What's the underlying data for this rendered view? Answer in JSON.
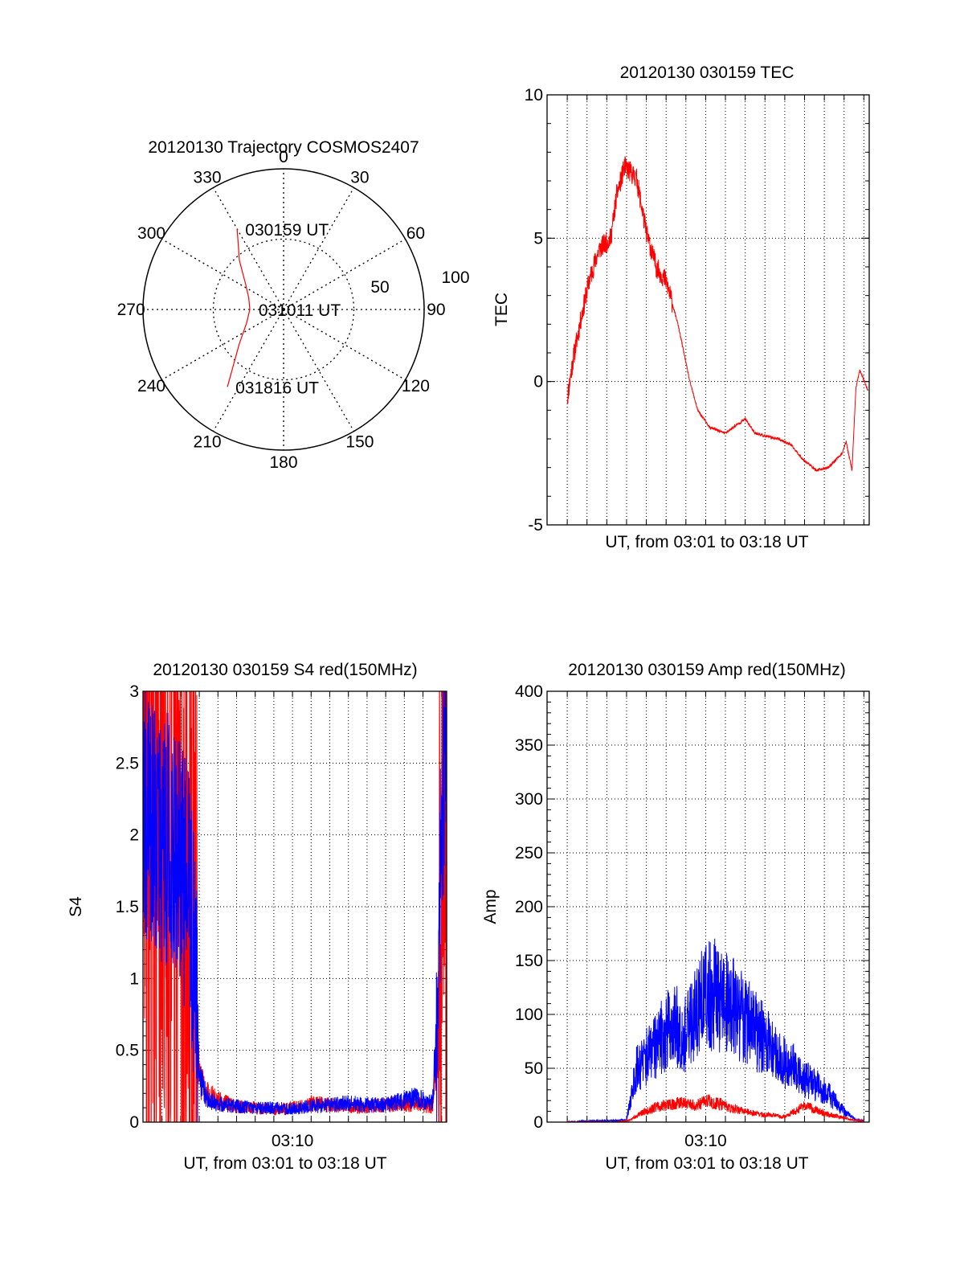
{
  "chart_data": [
    {
      "id": "trajectory",
      "type": "polar",
      "title": "20120130 Trajectory COSMOS2407",
      "azimuth_labels": [
        "0",
        "30",
        "60",
        "90",
        "120",
        "150",
        "180",
        "210",
        "240",
        "270",
        "300",
        "330"
      ],
      "radius_labels": [
        "50",
        "100"
      ],
      "series": [
        {
          "color": "#ff0000",
          "points": [
            [
              330,
              66
            ],
            [
              318,
              47
            ],
            [
              303,
              32
            ],
            [
              288,
              26
            ],
            [
              270,
              24
            ],
            [
              250,
              28
            ],
            [
              232,
              40
            ],
            [
              216,
              68
            ]
          ]
        }
      ],
      "annotations": [
        {
          "text": "030159 UT",
          "az": 330,
          "r": 66
        },
        {
          "text": "031011 UT",
          "az": 270,
          "r": 24
        },
        {
          "text": "031816 UT",
          "az": 216,
          "r": 68
        }
      ]
    },
    {
      "id": "tec",
      "type": "line",
      "title": "20120130 030159 TEC",
      "xlabel": "UT, from 03:01 to 03:18 UT",
      "ylabel": "TEC",
      "xlim": [
        1.98,
        18.27
      ],
      "ylim": [
        -5,
        10
      ],
      "yticks": [
        -5,
        0,
        5,
        10
      ],
      "xtick_labels": [],
      "series": [
        {
          "color": "#ff0000",
          "noise": "low",
          "x": [
            3.0,
            3.3,
            3.7,
            4.1,
            4.6,
            5.2,
            5.5,
            5.9,
            6.5,
            7.0,
            7.5,
            8.0,
            8.6,
            9.2,
            9.6,
            10.2,
            11.0,
            12.0,
            12.5,
            13.0,
            13.7,
            14.3,
            14.9,
            15.6,
            16.2,
            16.9,
            17.1,
            17.4,
            17.6,
            17.8,
            18.2
          ],
          "y": [
            -0.6,
            0.8,
            2.2,
            3.5,
            4.6,
            5.0,
            6.5,
            7.5,
            7.1,
            5.2,
            4.0,
            3.5,
            2.0,
            0.0,
            -1.0,
            -1.6,
            -1.8,
            -1.3,
            -1.8,
            -1.9,
            -2.0,
            -2.2,
            -2.7,
            -3.1,
            -3.0,
            -2.5,
            -2.1,
            -3.1,
            -0.2,
            0.4,
            -0.3
          ]
        }
      ]
    },
    {
      "id": "s4",
      "type": "line",
      "title": "20120130 030159 S4 red(150MHz)",
      "xlabel": "UT, from 03:01 to 03:18 UT",
      "ylabel": "S4",
      "xlim": [
        1.98,
        18.27
      ],
      "ylim": [
        0,
        3
      ],
      "yticks": [
        0,
        0.5,
        1,
        1.5,
        2,
        2.5,
        3
      ],
      "ytick_labels": [
        "0",
        "0.5",
        "1",
        "1.5",
        "2",
        "2.5",
        "3"
      ],
      "xtick_labels": [
        {
          "value": 10,
          "label": "03:10"
        }
      ],
      "series": [
        {
          "color": "#ff0000",
          "noise": "high",
          "x": [
            1.98,
            2.5,
            3.0,
            3.5,
            4.0,
            4.5,
            4.8,
            5.0,
            5.5,
            6.0,
            7.0,
            8.0,
            9.0,
            10.0,
            11.0,
            12.0,
            13.0,
            14.0,
            15.0,
            16.0,
            17.0,
            17.5,
            17.8,
            18.0,
            18.27
          ],
          "y": [
            2.5,
            2.3,
            2.2,
            2.0,
            1.8,
            1.5,
            0.8,
            0.3,
            0.2,
            0.15,
            0.11,
            0.1,
            0.09,
            0.1,
            0.13,
            0.12,
            0.11,
            0.11,
            0.12,
            0.13,
            0.12,
            0.1,
            0.5,
            2.0,
            3.0
          ]
        },
        {
          "color": "#0000ff",
          "noise": "high",
          "x": [
            1.98,
            2.5,
            3.0,
            3.5,
            4.0,
            4.5,
            4.8,
            5.0,
            5.5,
            6.0,
            7.0,
            8.0,
            9.0,
            10.0,
            11.0,
            12.0,
            13.0,
            14.0,
            15.0,
            16.0,
            16.5,
            17.0,
            17.5,
            17.8,
            18.0,
            18.27
          ],
          "y": [
            2.2,
            2.1,
            2.0,
            1.95,
            1.8,
            1.5,
            1.0,
            0.3,
            0.15,
            0.13,
            0.11,
            0.1,
            0.1,
            0.09,
            0.11,
            0.12,
            0.13,
            0.12,
            0.12,
            0.15,
            0.17,
            0.15,
            0.13,
            0.8,
            2.3,
            2.6
          ]
        }
      ]
    },
    {
      "id": "amp",
      "type": "line",
      "title": "20120130 030159 Amp red(150MHz)",
      "xlabel": "UT, from 03:01 to 03:18 UT",
      "ylabel": "Amp",
      "xlim": [
        1.98,
        18.27
      ],
      "ylim": [
        0,
        400
      ],
      "yticks": [
        0,
        50,
        100,
        150,
        200,
        250,
        300,
        350,
        400
      ],
      "xtick_labels": [
        {
          "value": 10,
          "label": "03:10"
        }
      ],
      "series": [
        {
          "color": "#0000ff",
          "noise": "amp",
          "x": [
            3.0,
            4.0,
            5.0,
            6.0,
            6.5,
            7.0,
            7.5,
            8.0,
            8.5,
            9.0,
            9.5,
            10.0,
            10.5,
            11.0,
            11.5,
            12.0,
            12.5,
            13.0,
            13.5,
            14.0,
            14.5,
            15.0,
            15.5,
            16.0,
            16.5,
            17.0,
            17.5,
            18.0
          ],
          "y": [
            0,
            1,
            1,
            2,
            50,
            60,
            70,
            85,
            90,
            80,
            105,
            115,
            120,
            110,
            105,
            95,
            85,
            75,
            65,
            55,
            50,
            40,
            35,
            30,
            20,
            10,
            3,
            1
          ]
        },
        {
          "color": "#ff0000",
          "noise": "amp-low",
          "x": [
            3.0,
            5.5,
            6.2,
            6.7,
            7.5,
            8.0,
            8.5,
            9.0,
            9.5,
            10.0,
            10.5,
            11.0,
            11.5,
            12.0,
            12.5,
            13.0,
            13.5,
            14.0,
            14.5,
            15.0,
            15.5,
            16.0,
            16.5,
            17.0,
            17.5,
            18.0
          ],
          "y": [
            0,
            0,
            2,
            8,
            14,
            16,
            17,
            18,
            15,
            20,
            18,
            15,
            12,
            10,
            8,
            7,
            6,
            5,
            10,
            15,
            12,
            8,
            6,
            4,
            2,
            1
          ]
        }
      ]
    }
  ]
}
